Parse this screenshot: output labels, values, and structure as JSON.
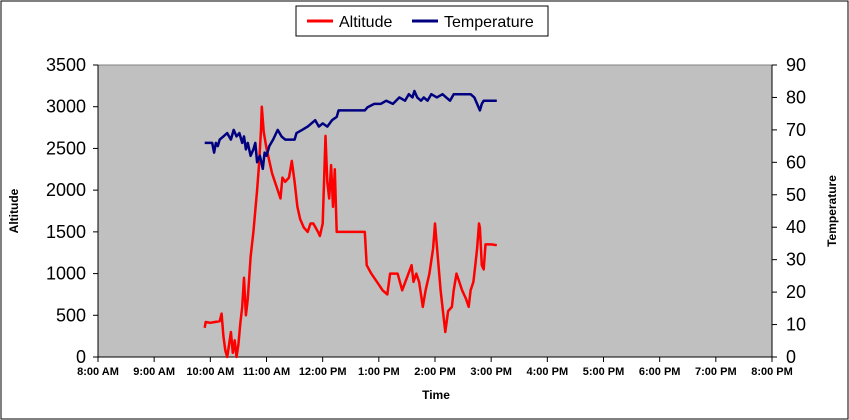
{
  "chart_data": {
    "type": "line",
    "xlabel": "Time",
    "ylabel_left": "Altitude",
    "ylabel_right": "Temperature",
    "x_ticks": [
      "8:00 AM",
      "9:00 AM",
      "10:00 AM",
      "11:00 AM",
      "12:00 PM",
      "1:00 PM",
      "2:00 PM",
      "3:00 PM",
      "4:00 PM",
      "5:00 PM",
      "6:00 PM",
      "7:00 PM",
      "8:00 PM"
    ],
    "xlim": [
      "8:00 AM",
      "8:00 PM"
    ],
    "ylim_left": [
      0,
      3500
    ],
    "ylim_right": [
      0,
      90
    ],
    "y_ticks_left": [
      0,
      500,
      1000,
      1500,
      2000,
      2500,
      3000,
      3500
    ],
    "y_ticks_right": [
      0,
      10,
      20,
      30,
      40,
      50,
      60,
      70,
      80,
      90
    ],
    "grid": false,
    "legend_position": "top-center",
    "colors": {
      "altitude": "#ff0000",
      "temperature": "#000080",
      "plot_background": "#c0c0c0"
    },
    "series": [
      {
        "name": "Altitude",
        "axis": "left",
        "color": "#ff0000",
        "points": [
          [
            "9:54 AM",
            350
          ],
          [
            "9:55 AM",
            420
          ],
          [
            "10:00 AM",
            410
          ],
          [
            "10:05 AM",
            420
          ],
          [
            "10:10 AM",
            430
          ],
          [
            "10:12 AM",
            520
          ],
          [
            "10:14 AM",
            250
          ],
          [
            "10:16 AM",
            80
          ],
          [
            "10:18 AM",
            0
          ],
          [
            "10:20 AM",
            150
          ],
          [
            "10:22 AM",
            300
          ],
          [
            "10:24 AM",
            50
          ],
          [
            "10:26 AM",
            200
          ],
          [
            "10:28 AM",
            0
          ],
          [
            "10:30 AM",
            150
          ],
          [
            "10:32 AM",
            400
          ],
          [
            "10:34 AM",
            600
          ],
          [
            "10:36 AM",
            950
          ],
          [
            "10:38 AM",
            500
          ],
          [
            "10:40 AM",
            700
          ],
          [
            "10:43 AM",
            1200
          ],
          [
            "10:46 AM",
            1500
          ],
          [
            "10:50 AM",
            2000
          ],
          [
            "10:52 AM",
            2300
          ],
          [
            "10:54 AM",
            2700
          ],
          [
            "10:55 AM",
            3000
          ],
          [
            "10:57 AM",
            2700
          ],
          [
            "11:00 AM",
            2500
          ],
          [
            "11:03 AM",
            2350
          ],
          [
            "11:06 AM",
            2200
          ],
          [
            "11:09 AM",
            2100
          ],
          [
            "11:12 AM",
            2000
          ],
          [
            "11:15 AM",
            1900
          ],
          [
            "11:17 AM",
            2150
          ],
          [
            "11:20 AM",
            2100
          ],
          [
            "11:24 AM",
            2150
          ],
          [
            "11:27 AM",
            2350
          ],
          [
            "11:30 AM",
            2100
          ],
          [
            "11:33 AM",
            1800
          ],
          [
            "11:36 AM",
            1650
          ],
          [
            "11:40 AM",
            1550
          ],
          [
            "11:44 AM",
            1500
          ],
          [
            "11:47 AM",
            1600
          ],
          [
            "11:50 AM",
            1600
          ],
          [
            "11:55 AM",
            1500
          ],
          [
            "11:57 AM",
            1450
          ],
          [
            "12:00 PM",
            1600
          ],
          [
            "12:03 PM",
            2650
          ],
          [
            "12:05 PM",
            2100
          ],
          [
            "12:07 PM",
            1900
          ],
          [
            "12:09 PM",
            2300
          ],
          [
            "12:11 PM",
            1800
          ],
          [
            "12:13 PM",
            2250
          ],
          [
            "12:15 PM",
            1500
          ],
          [
            "12:30 PM",
            1500
          ],
          [
            "12:45 PM",
            1500
          ],
          [
            "12:47 PM",
            1100
          ],
          [
            "12:52 PM",
            1000
          ],
          [
            "12:58 PM",
            900
          ],
          [
            "1:04 PM",
            800
          ],
          [
            "1:09 PM",
            750
          ],
          [
            "1:12 PM",
            1000
          ],
          [
            "1:20 PM",
            1000
          ],
          [
            "1:25 PM",
            800
          ],
          [
            "1:30 PM",
            950
          ],
          [
            "1:35 PM",
            1100
          ],
          [
            "1:37 PM",
            900
          ],
          [
            "1:40 PM",
            1000
          ],
          [
            "1:43 PM",
            900
          ],
          [
            "1:45 PM",
            750
          ],
          [
            "1:47 PM",
            600
          ],
          [
            "1:50 PM",
            800
          ],
          [
            "1:54 PM",
            1000
          ],
          [
            "1:58 PM",
            1300
          ],
          [
            "2:00 PM",
            1600
          ],
          [
            "2:03 PM",
            1200
          ],
          [
            "2:06 PM",
            800
          ],
          [
            "2:09 PM",
            500
          ],
          [
            "2:11 PM",
            300
          ],
          [
            "2:14 PM",
            550
          ],
          [
            "2:18 PM",
            600
          ],
          [
            "2:20 PM",
            800
          ],
          [
            "2:23 PM",
            1000
          ],
          [
            "2:26 PM",
            900
          ],
          [
            "2:29 PM",
            800
          ],
          [
            "2:33 PM",
            700
          ],
          [
            "2:36 PM",
            600
          ],
          [
            "2:38 PM",
            800
          ],
          [
            "2:41 PM",
            900
          ],
          [
            "2:43 PM",
            1100
          ],
          [
            "2:45 PM",
            1300
          ],
          [
            "2:47 PM",
            1600
          ],
          [
            "2:48 PM",
            1550
          ],
          [
            "2:50 PM",
            1100
          ],
          [
            "2:52 PM",
            1050
          ],
          [
            "2:54 PM",
            1350
          ],
          [
            "3:00 PM",
            1350
          ],
          [
            "3:06 PM",
            1340
          ]
        ]
      },
      {
        "name": "Temperature",
        "axis": "right",
        "color": "#000080",
        "points": [
          [
            "9:54 AM",
            66
          ],
          [
            "10:02 AM",
            66
          ],
          [
            "10:04 AM",
            63
          ],
          [
            "10:06 AM",
            66
          ],
          [
            "10:08 AM",
            65
          ],
          [
            "10:10 AM",
            67
          ],
          [
            "10:14 AM",
            68
          ],
          [
            "10:18 AM",
            69
          ],
          [
            "10:22 AM",
            67
          ],
          [
            "10:25 AM",
            70
          ],
          [
            "10:28 AM",
            68
          ],
          [
            "10:31 AM",
            69
          ],
          [
            "10:34 AM",
            66
          ],
          [
            "10:36 AM",
            68
          ],
          [
            "10:38 AM",
            64
          ],
          [
            "10:40 AM",
            66
          ],
          [
            "10:43 AM",
            62
          ],
          [
            "10:46 AM",
            64
          ],
          [
            "10:48 AM",
            66
          ],
          [
            "10:50 AM",
            60
          ],
          [
            "10:53 AM",
            62
          ],
          [
            "10:56 AM",
            58
          ],
          [
            "10:58 AM",
            63
          ],
          [
            "11:00 AM",
            62
          ],
          [
            "11:03 AM",
            65
          ],
          [
            "11:07 AM",
            67
          ],
          [
            "11:12 AM",
            70
          ],
          [
            "11:16 AM",
            68
          ],
          [
            "11:20 AM",
            67
          ],
          [
            "11:30 AM",
            67
          ],
          [
            "11:32 AM",
            69
          ],
          [
            "11:38 AM",
            70
          ],
          [
            "11:44 AM",
            71
          ],
          [
            "11:48 AM",
            72
          ],
          [
            "11:52 AM",
            73
          ],
          [
            "11:56 AM",
            71
          ],
          [
            "12:00 PM",
            72
          ],
          [
            "12:05 PM",
            71
          ],
          [
            "12:10 PM",
            73
          ],
          [
            "12:15 PM",
            74
          ],
          [
            "12:17 PM",
            76
          ],
          [
            "12:45 PM",
            76
          ],
          [
            "12:48 PM",
            77
          ],
          [
            "12:55 PM",
            78
          ],
          [
            "1:02 PM",
            78
          ],
          [
            "1:08 PM",
            79
          ],
          [
            "1:15 PM",
            78
          ],
          [
            "1:22 PM",
            80
          ],
          [
            "1:28 PM",
            79
          ],
          [
            "1:32 PM",
            81
          ],
          [
            "1:36 PM",
            80
          ],
          [
            "1:38 PM",
            82
          ],
          [
            "1:41 PM",
            80
          ],
          [
            "1:45 PM",
            79
          ],
          [
            "1:48 PM",
            80
          ],
          [
            "1:52 PM",
            79
          ],
          [
            "1:56 PM",
            81
          ],
          [
            "2:02 PM",
            80
          ],
          [
            "2:08 PM",
            81
          ],
          [
            "2:12 PM",
            80
          ],
          [
            "2:16 PM",
            79
          ],
          [
            "2:20 PM",
            81
          ],
          [
            "2:25 PM",
            81
          ],
          [
            "2:38 PM",
            81
          ],
          [
            "2:42 PM",
            80
          ],
          [
            "2:45 PM",
            78
          ],
          [
            "2:48 PM",
            76
          ],
          [
            "2:50 PM",
            78
          ],
          [
            "2:52 PM",
            79
          ],
          [
            "3:00 PM",
            79
          ],
          [
            "3:06 PM",
            79
          ]
        ]
      }
    ]
  }
}
